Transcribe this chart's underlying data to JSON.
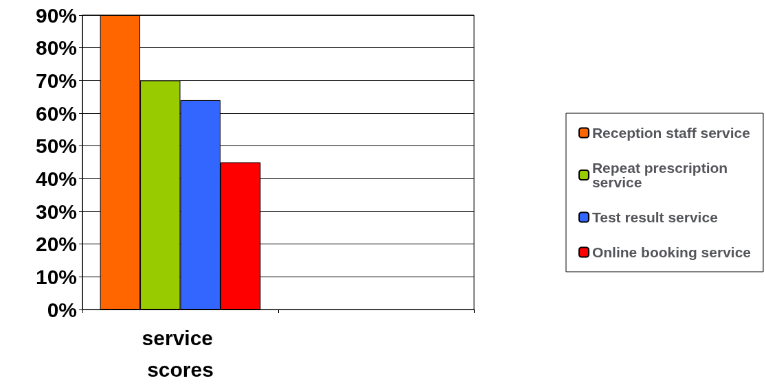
{
  "chart_data": {
    "type": "bar",
    "categories": [
      "service scores",
      null
    ],
    "series": [
      {
        "name": "Reception staff service",
        "color": "#ff6600",
        "values": [
          90,
          null
        ]
      },
      {
        "name": "Repeat prescription service",
        "color": "#99cc00",
        "values": [
          70,
          null
        ]
      },
      {
        "name": "Test result service",
        "color": "#3366ff",
        "values": [
          64,
          null
        ]
      },
      {
        "name": "Online booking service",
        "color": "#ff0000",
        "values": [
          45,
          null
        ]
      }
    ],
    "ylim": [
      0,
      90
    ],
    "yticks": [
      {
        "value": 0,
        "label": "0%"
      },
      {
        "value": 10,
        "label": "10%"
      },
      {
        "value": 20,
        "label": "20%"
      },
      {
        "value": 30,
        "label": "30%"
      },
      {
        "value": 40,
        "label": "40%"
      },
      {
        "value": 50,
        "label": "50%"
      },
      {
        "value": 60,
        "label": "60%"
      },
      {
        "value": 70,
        "label": "70%"
      },
      {
        "value": 80,
        "label": "80%"
      },
      {
        "value": 90,
        "label": "90%"
      }
    ],
    "grid": "y",
    "legend": "right"
  }
}
